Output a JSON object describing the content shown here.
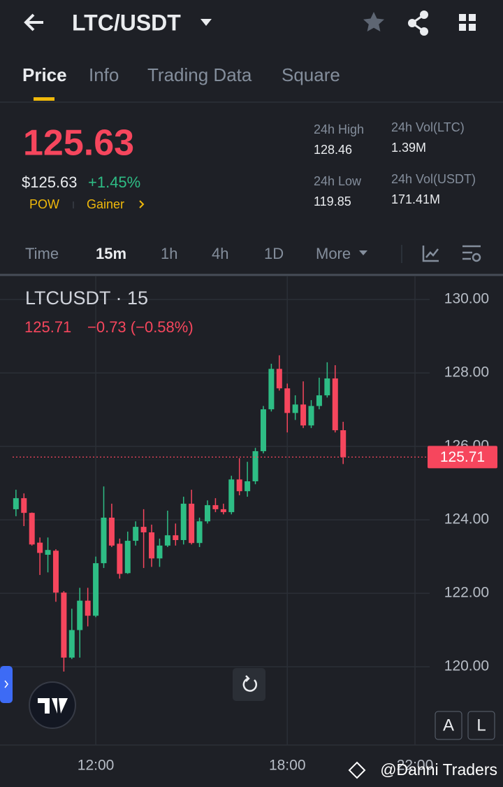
{
  "header": {
    "pair": "LTC/USDT"
  },
  "tabs": [
    "Price",
    "Info",
    "Trading Data",
    "Square"
  ],
  "ticker": {
    "price": "125.63",
    "price_usd": "$125.63",
    "change": "+1.45%",
    "tags": [
      "POW",
      "Gainer"
    ],
    "stats": [
      {
        "label": "24h High",
        "value": "128.46"
      },
      {
        "label": "24h Vol(LTC)",
        "value": "1.39M"
      },
      {
        "label": "24h Low",
        "value": "119.85"
      },
      {
        "label": "24h Vol(USDT)",
        "value": "171.41M"
      }
    ]
  },
  "intervals": [
    "Time",
    "15m",
    "1h",
    "4h",
    "1D",
    "More"
  ],
  "chart_data": {
    "type": "candlestick",
    "title": "LTCUSDT · 15",
    "change": "−0.73 (−0.58%)",
    "last_price": 125.71,
    "up_color": "#2ebd85",
    "down_color": "#f6465d",
    "grid": true,
    "xlim": [
      9.0,
      22.35
    ],
    "ylim": [
      117.87,
      130.63
    ],
    "xticks": [
      {
        "value": 12,
        "label": "12:00"
      },
      {
        "value": 18,
        "label": "18:00"
      },
      {
        "value": 22,
        "label": "22:00"
      }
    ],
    "yticks": [
      {
        "value": 120,
        "label": "120.00"
      },
      {
        "value": 122,
        "label": "122.00"
      },
      {
        "value": 124,
        "label": "124.00"
      },
      {
        "value": 126,
        "label": "126.00"
      },
      {
        "value": 128,
        "label": "128.00"
      },
      {
        "value": 130,
        "label": "130.00"
      }
    ],
    "x": [
      9.5,
      9.75,
      10,
      10.25,
      10.5,
      10.75,
      11,
      11.25,
      11.5,
      11.75,
      12,
      12.25,
      12.5,
      12.75,
      13,
      13.25,
      13.5,
      13.75,
      14,
      14.25,
      14.5,
      14.75,
      15,
      15.25,
      15.5,
      15.75,
      16,
      16.25,
      16.5,
      16.75,
      17,
      17.25,
      17.5,
      17.75,
      18,
      18.25,
      18.5,
      18.75,
      19,
      19.25,
      19.5,
      19.75
    ],
    "open": [
      124.29,
      124.59,
      124.19,
      123.38,
      123.05,
      123.16,
      122.02,
      120.25,
      121.0,
      121.8,
      121.39,
      122.82,
      124.06,
      123.35,
      122.55,
      123.43,
      123.81,
      123.66,
      122.95,
      123.3,
      123.58,
      123.45,
      124.44,
      123.37,
      123.96,
      124.4,
      124.29,
      124.21,
      125.1,
      124.78,
      125.05,
      125.87,
      127.01,
      128.11,
      127.58,
      126.91,
      127.14,
      126.57,
      127.1,
      127.39,
      127.85,
      126.44
    ],
    "high": [
      124.82,
      124.72,
      124.2,
      123.52,
      123.52,
      123.2,
      122.06,
      121.58,
      122.15,
      122.15,
      123.0,
      124.91,
      124.44,
      123.49,
      123.68,
      123.96,
      124.29,
      123.87,
      123.49,
      124.25,
      123.9,
      124.63,
      124.82,
      124.06,
      124.53,
      124.59,
      124.44,
      125.2,
      125.68,
      125.58,
      125.96,
      127.1,
      128.25,
      128.48,
      127.71,
      127.39,
      127.77,
      127.26,
      127.87,
      128.29,
      128.21,
      126.67
    ],
    "low": [
      124.1,
      123.83,
      123.3,
      122.5,
      122.57,
      121.77,
      119.87,
      120.21,
      120.25,
      121.1,
      121.35,
      122.69,
      123.26,
      122.4,
      122.53,
      123.3,
      122.69,
      122.72,
      122.72,
      123.26,
      123.3,
      123.33,
      123.33,
      123.26,
      123.9,
      124.21,
      124.15,
      124.15,
      124.67,
      124.63,
      124.97,
      125.81,
      126.95,
      127.52,
      126.38,
      126.72,
      126.5,
      126.5,
      127.01,
      127.33,
      126.38,
      125.52
    ],
    "close": [
      124.59,
      124.19,
      123.33,
      123.1,
      123.18,
      122.02,
      120.25,
      121.0,
      121.8,
      121.39,
      122.82,
      124.06,
      123.3,
      122.53,
      123.43,
      123.81,
      123.66,
      122.95,
      123.3,
      123.58,
      123.45,
      124.44,
      123.37,
      123.96,
      124.4,
      124.29,
      124.21,
      125.1,
      124.78,
      125.05,
      125.87,
      127.01,
      128.11,
      127.58,
      126.91,
      127.14,
      126.57,
      127.1,
      127.39,
      127.85,
      126.44,
      125.71
    ]
  },
  "buttons": [
    "A",
    "L"
  ],
  "watermark": "@Danni Traders"
}
